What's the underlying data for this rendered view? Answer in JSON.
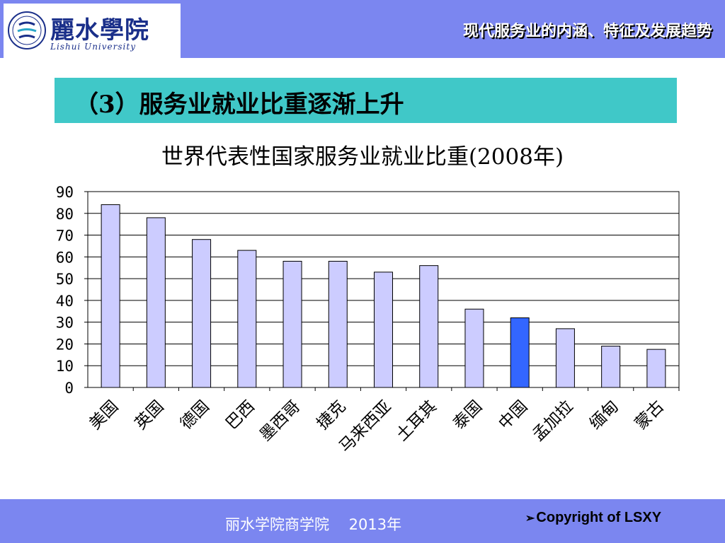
{
  "header": {
    "logo_text_cn": "麗水學院",
    "logo_text_en": "Lishui University",
    "title": "现代服务业的内涵、特征及发展趋势"
  },
  "section": {
    "title": "（3）服务业就业比重逐渐上升"
  },
  "chart_data": {
    "type": "bar",
    "title": "世界代表性国家服务业就业比重(2008年)",
    "categories": [
      "美国",
      "英国",
      "德国",
      "巴西",
      "墨西哥",
      "捷克",
      "马来西亚",
      "土耳其",
      "泰国",
      "中国",
      "孟加拉",
      "缅甸",
      "蒙古"
    ],
    "values": [
      84,
      78,
      68,
      63,
      58,
      58,
      53,
      56,
      36,
      32,
      27,
      19,
      17.5
    ],
    "highlight_index": 9,
    "ylim": [
      0,
      90
    ],
    "yticks": [
      0,
      10,
      20,
      30,
      40,
      50,
      60,
      70,
      80,
      90
    ],
    "xlabel": "",
    "ylabel": "",
    "grid": true,
    "colors": {
      "bar": "#ccccff",
      "highlight": "#3366ff",
      "border": "#000000"
    }
  },
  "footer": {
    "text": "丽水学院商学院　 2013年",
    "copyright": "Copyright of LSXY",
    "colors": {
      "bar": "#7b86f0"
    }
  }
}
